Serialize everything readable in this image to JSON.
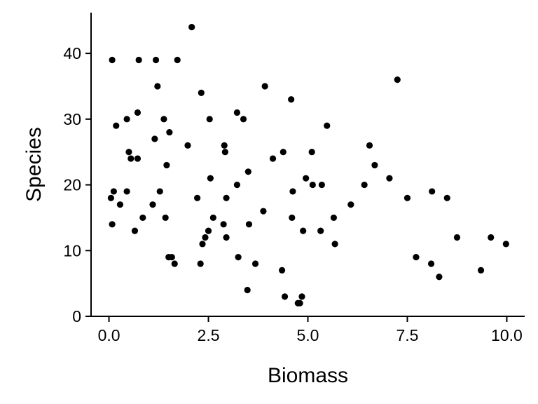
{
  "chart_data": {
    "type": "scatter",
    "title": "",
    "xlabel": "Biomass",
    "ylabel": "Species",
    "xlim": [
      -0.45,
      10.45
    ],
    "ylim": [
      0,
      46.2
    ],
    "xticks": [
      0.0,
      2.5,
      5.0,
      7.5,
      10.0
    ],
    "xtick_labels": [
      "0.0",
      "2.5",
      "5.0",
      "7.5",
      "10.0"
    ],
    "yticks": [
      0,
      10,
      20,
      30,
      40
    ],
    "ytick_labels": [
      "0",
      "10",
      "20",
      "30",
      "40"
    ],
    "grid": false,
    "legend": "none",
    "point_color": "#000000",
    "points": [
      {
        "x": 0.05,
        "y": 18
      },
      {
        "x": 0.08,
        "y": 14
      },
      {
        "x": 0.08,
        "y": 39
      },
      {
        "x": 0.12,
        "y": 19
      },
      {
        "x": 0.18,
        "y": 29
      },
      {
        "x": 0.28,
        "y": 17
      },
      {
        "x": 0.45,
        "y": 19
      },
      {
        "x": 0.45,
        "y": 30
      },
      {
        "x": 0.5,
        "y": 25
      },
      {
        "x": 0.55,
        "y": 24
      },
      {
        "x": 0.65,
        "y": 13
      },
      {
        "x": 0.72,
        "y": 24
      },
      {
        "x": 0.72,
        "y": 31
      },
      {
        "x": 0.75,
        "y": 39
      },
      {
        "x": 0.85,
        "y": 15
      },
      {
        "x": 1.1,
        "y": 17
      },
      {
        "x": 1.15,
        "y": 27
      },
      {
        "x": 1.18,
        "y": 39
      },
      {
        "x": 1.22,
        "y": 35
      },
      {
        "x": 1.28,
        "y": 19
      },
      {
        "x": 1.38,
        "y": 30
      },
      {
        "x": 1.42,
        "y": 15
      },
      {
        "x": 1.45,
        "y": 23
      },
      {
        "x": 1.5,
        "y": 9
      },
      {
        "x": 1.52,
        "y": 28
      },
      {
        "x": 1.58,
        "y": 9
      },
      {
        "x": 1.65,
        "y": 8
      },
      {
        "x": 1.72,
        "y": 39
      },
      {
        "x": 1.98,
        "y": 26
      },
      {
        "x": 2.08,
        "y": 44
      },
      {
        "x": 2.22,
        "y": 18
      },
      {
        "x": 2.3,
        "y": 8
      },
      {
        "x": 2.32,
        "y": 34
      },
      {
        "x": 2.35,
        "y": 11
      },
      {
        "x": 2.42,
        "y": 12
      },
      {
        "x": 2.5,
        "y": 13
      },
      {
        "x": 2.53,
        "y": 30
      },
      {
        "x": 2.55,
        "y": 21
      },
      {
        "x": 2.62,
        "y": 15
      },
      {
        "x": 2.88,
        "y": 14
      },
      {
        "x": 2.9,
        "y": 26
      },
      {
        "x": 2.92,
        "y": 25
      },
      {
        "x": 2.95,
        "y": 12
      },
      {
        "x": 2.95,
        "y": 18
      },
      {
        "x": 3.22,
        "y": 20
      },
      {
        "x": 3.22,
        "y": 31
      },
      {
        "x": 3.25,
        "y": 9
      },
      {
        "x": 3.38,
        "y": 30
      },
      {
        "x": 3.48,
        "y": 4
      },
      {
        "x": 3.5,
        "y": 22
      },
      {
        "x": 3.52,
        "y": 14
      },
      {
        "x": 3.68,
        "y": 8
      },
      {
        "x": 3.88,
        "y": 16
      },
      {
        "x": 3.92,
        "y": 35
      },
      {
        "x": 4.12,
        "y": 24
      },
      {
        "x": 4.35,
        "y": 7
      },
      {
        "x": 4.38,
        "y": 25
      },
      {
        "x": 4.42,
        "y": 3
      },
      {
        "x": 4.58,
        "y": 33
      },
      {
        "x": 4.6,
        "y": 15
      },
      {
        "x": 4.62,
        "y": 19
      },
      {
        "x": 4.75,
        "y": 2
      },
      {
        "x": 4.8,
        "y": 2
      },
      {
        "x": 4.85,
        "y": 3
      },
      {
        "x": 4.88,
        "y": 13
      },
      {
        "x": 4.95,
        "y": 21
      },
      {
        "x": 5.1,
        "y": 25
      },
      {
        "x": 5.12,
        "y": 20
      },
      {
        "x": 5.32,
        "y": 13
      },
      {
        "x": 5.35,
        "y": 20
      },
      {
        "x": 5.48,
        "y": 29
      },
      {
        "x": 5.65,
        "y": 15
      },
      {
        "x": 5.68,
        "y": 11
      },
      {
        "x": 6.08,
        "y": 17
      },
      {
        "x": 6.42,
        "y": 20
      },
      {
        "x": 6.55,
        "y": 26
      },
      {
        "x": 6.68,
        "y": 23
      },
      {
        "x": 7.05,
        "y": 21
      },
      {
        "x": 7.25,
        "y": 36
      },
      {
        "x": 7.5,
        "y": 18
      },
      {
        "x": 7.72,
        "y": 9
      },
      {
        "x": 8.1,
        "y": 8
      },
      {
        "x": 8.12,
        "y": 19
      },
      {
        "x": 8.3,
        "y": 6
      },
      {
        "x": 8.5,
        "y": 18
      },
      {
        "x": 8.75,
        "y": 12
      },
      {
        "x": 9.35,
        "y": 7
      },
      {
        "x": 9.6,
        "y": 12
      },
      {
        "x": 9.98,
        "y": 11
      }
    ]
  }
}
